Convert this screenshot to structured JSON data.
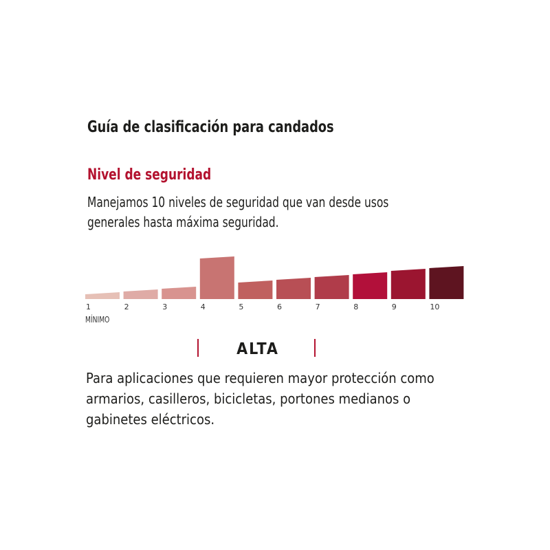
{
  "title": "Guía de clasificación para candados",
  "subtitle": "Nivel de seguridad",
  "intro_lines": [
    "Manejamos 10 niveles de seguridad que van desde usos",
    "generales hasta máxima seguridad."
  ],
  "chart_data": {
    "type": "bar",
    "categories": [
      "1",
      "2",
      "3",
      "4",
      "5",
      "6",
      "7",
      "8",
      "9",
      "10"
    ],
    "values": [
      10,
      14,
      18,
      62,
      27,
      31,
      35,
      39,
      44,
      48
    ],
    "highlighted_category": "4",
    "colors": [
      "#e6c0b6",
      "#dfaba6",
      "#d8938f",
      "#c87472",
      "#c0605f",
      "#b84f55",
      "#b03c4a",
      "#b2103a",
      "#9b1530",
      "#5e1420"
    ],
    "x_annotation": "MÍNIMO",
    "grid": false
  },
  "level_label": "ALTA",
  "accent_color": "#b3122f",
  "description_lines": [
    "Para aplicaciones que requieren mayor protección como",
    "armarios, casilleros, bicicletas, portones medianos o",
    "gabinetes eléctricos."
  ]
}
